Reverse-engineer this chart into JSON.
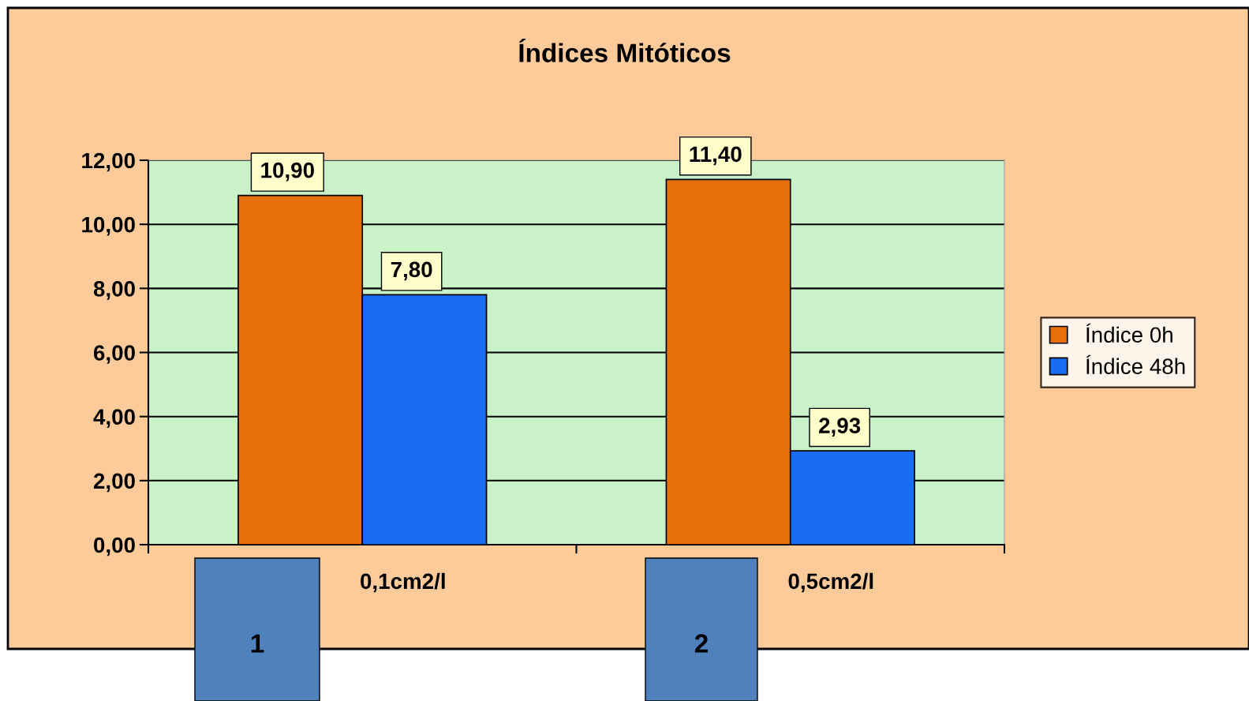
{
  "chart_data": {
    "type": "bar",
    "title": "Índices Mitóticos",
    "categories": [
      "0,1cm2/l",
      "0,5cm2/l"
    ],
    "series": [
      {
        "name": "Índice 0h",
        "color": "#e8700a",
        "values": [
          10.9,
          11.4
        ],
        "value_labels": [
          "10,90",
          "11,40"
        ]
      },
      {
        "name": "Índice 48h",
        "color": "#1a6cf5",
        "values": [
          7.8,
          2.93
        ],
        "value_labels": [
          "7,80",
          "2,93"
        ]
      }
    ],
    "ylim": [
      0,
      12
    ],
    "yticks": [
      {
        "value": 0,
        "label": "0,00"
      },
      {
        "value": 2,
        "label": "2,00"
      },
      {
        "value": 4,
        "label": "4,00"
      },
      {
        "value": 6,
        "label": "6,00"
      },
      {
        "value": 8,
        "label": "8,00"
      },
      {
        "value": 10,
        "label": "10,00"
      },
      {
        "value": 12,
        "label": "12,00"
      }
    ],
    "grid": "y",
    "legend": "right",
    "annotations": [
      "1",
      "2"
    ]
  }
}
